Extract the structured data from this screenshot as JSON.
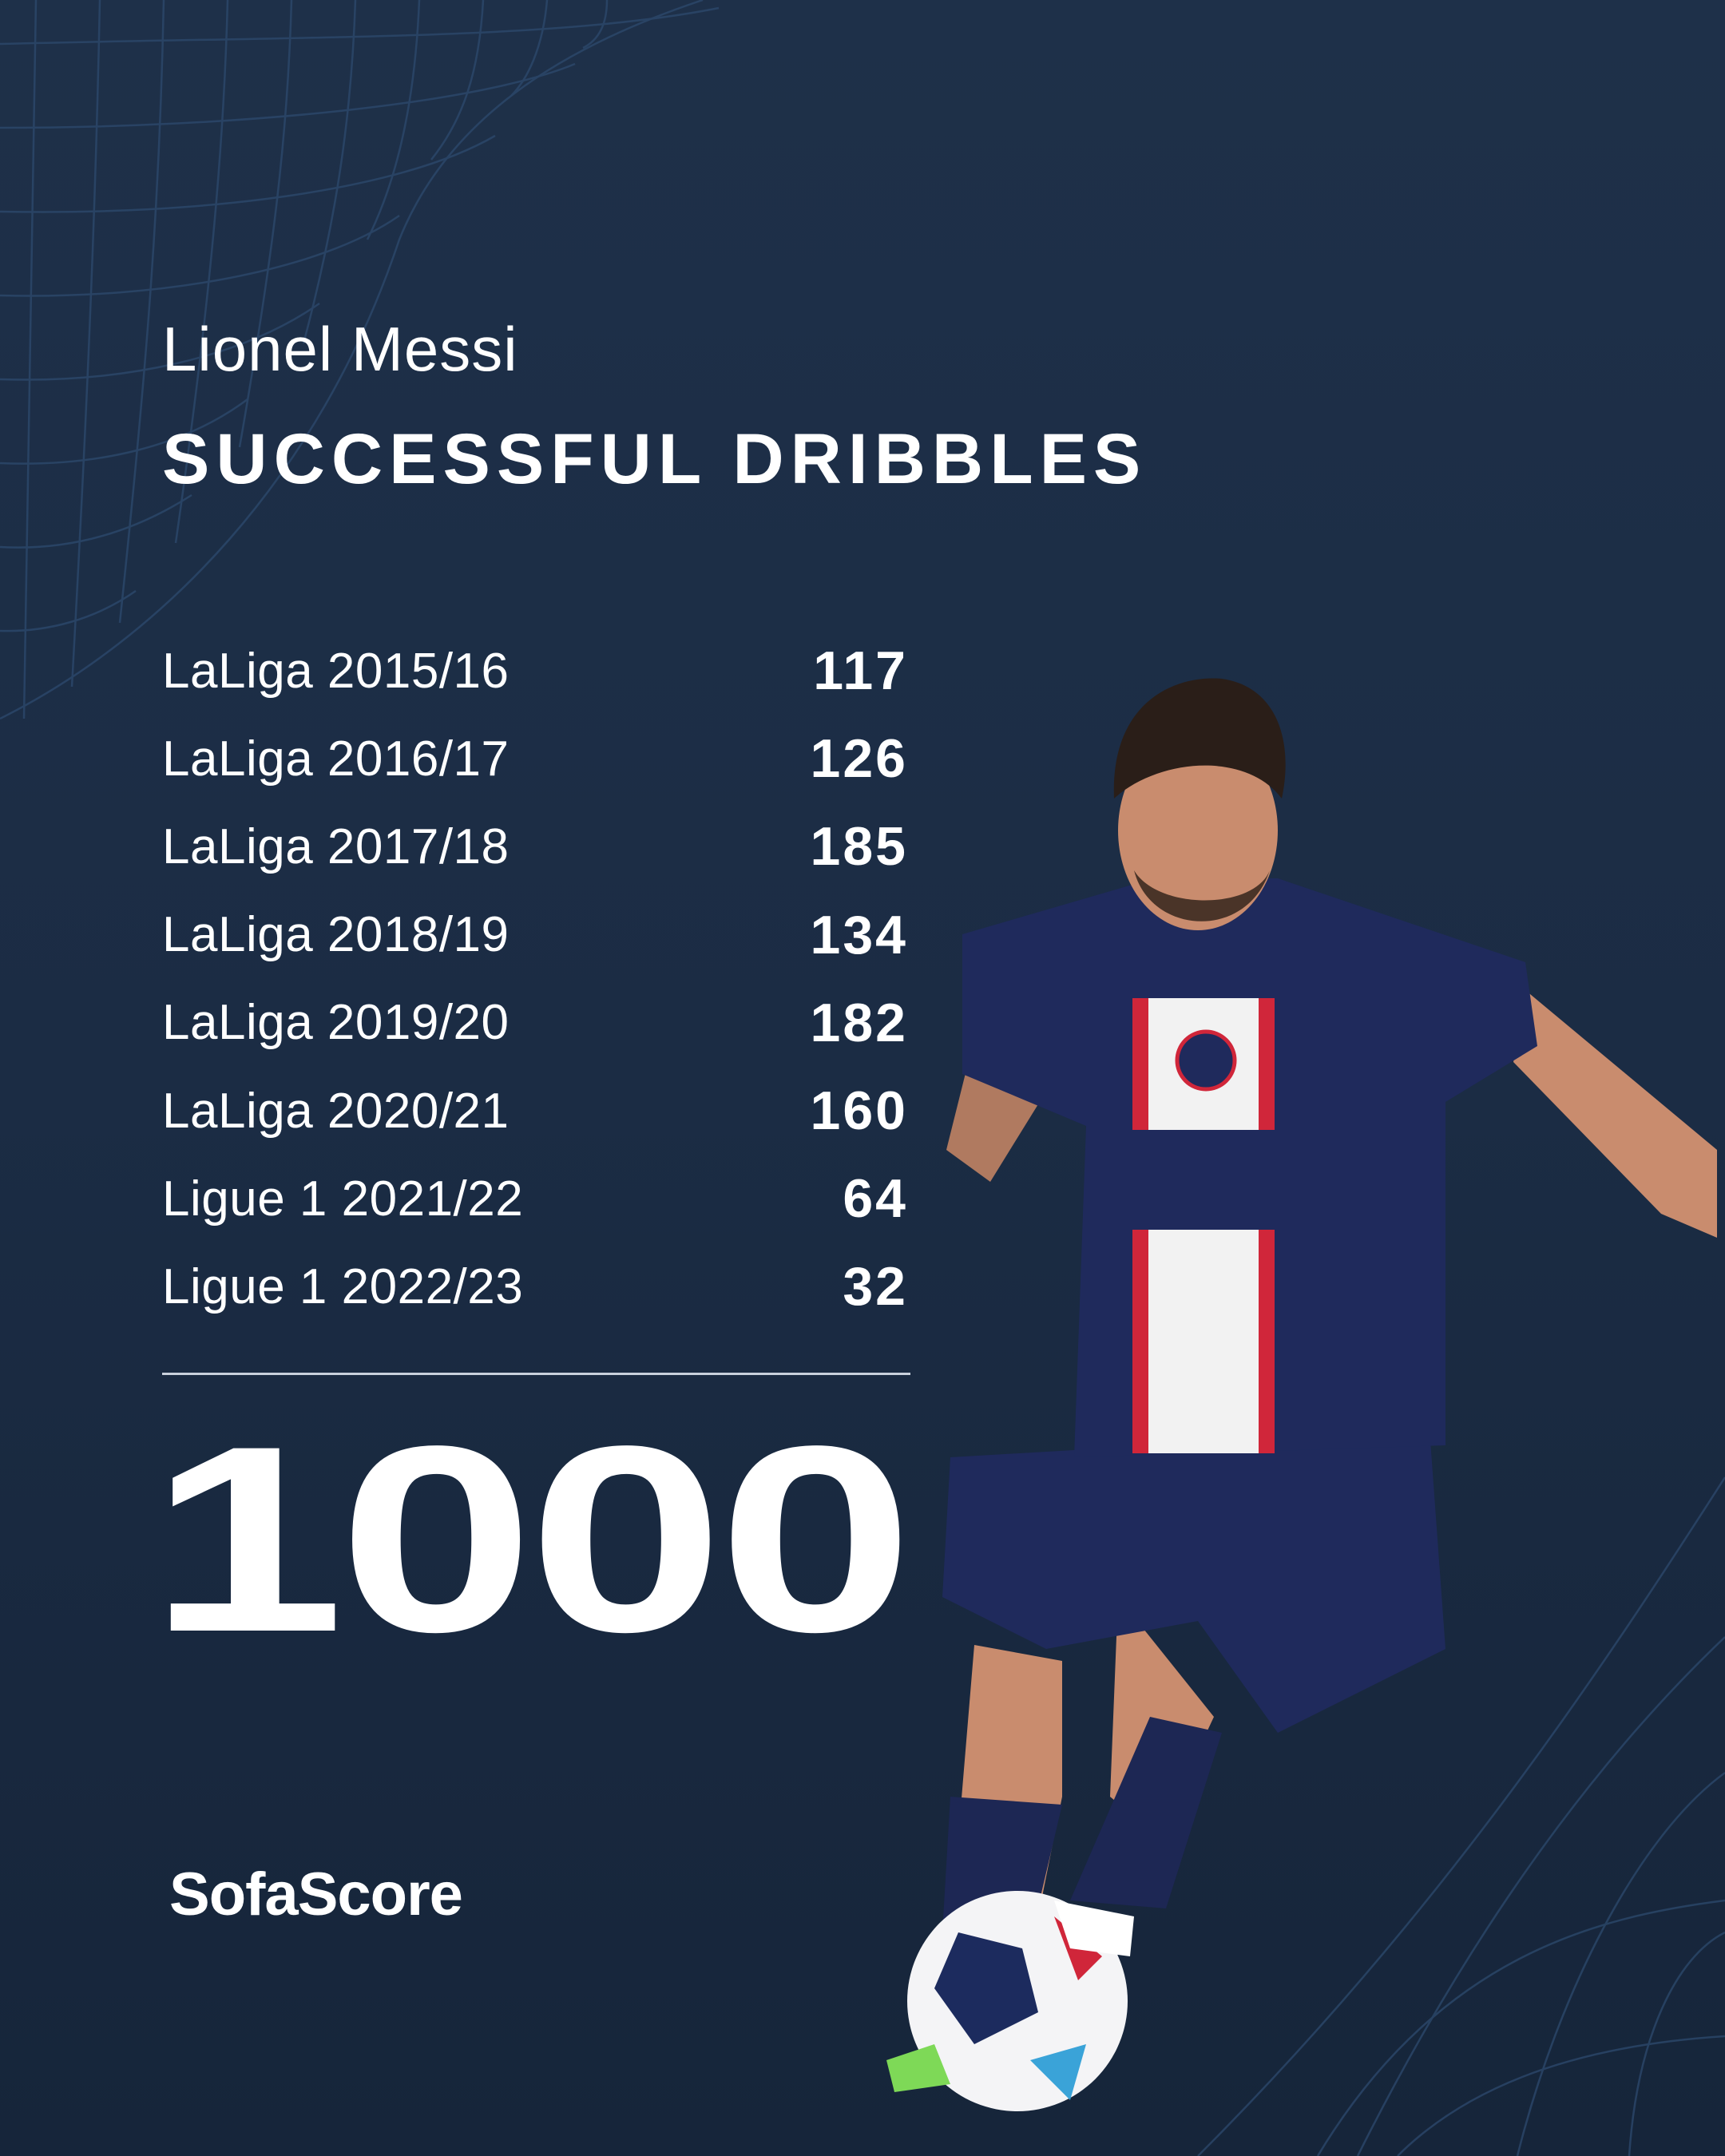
{
  "header": {
    "player_name": "Lionel Messi",
    "stat_title": "SUCCESSFUL DRIBBLES"
  },
  "seasons": [
    {
      "label": "LaLiga 2015/16",
      "value": "117"
    },
    {
      "label": "LaLiga 2016/17",
      "value": "126"
    },
    {
      "label": "LaLiga 2017/18",
      "value": "185"
    },
    {
      "label": "LaLiga 2018/19",
      "value": "134"
    },
    {
      "label": "LaLiga 2019/20",
      "value": "182"
    },
    {
      "label": "LaLiga 2020/21",
      "value": "160"
    },
    {
      "label": "Ligue 1 2021/22",
      "value": "64"
    },
    {
      "label": "Ligue 1 2022/23",
      "value": "32"
    }
  ],
  "total": "1000",
  "brand": {
    "logo_text": "SofaScore"
  },
  "colors": {
    "background": "#1c2d45",
    "grid_lines": "#2d4a6e",
    "text": "#ffffff",
    "kit_navy": "#1f2a5c",
    "kit_red": "#d0263a"
  }
}
